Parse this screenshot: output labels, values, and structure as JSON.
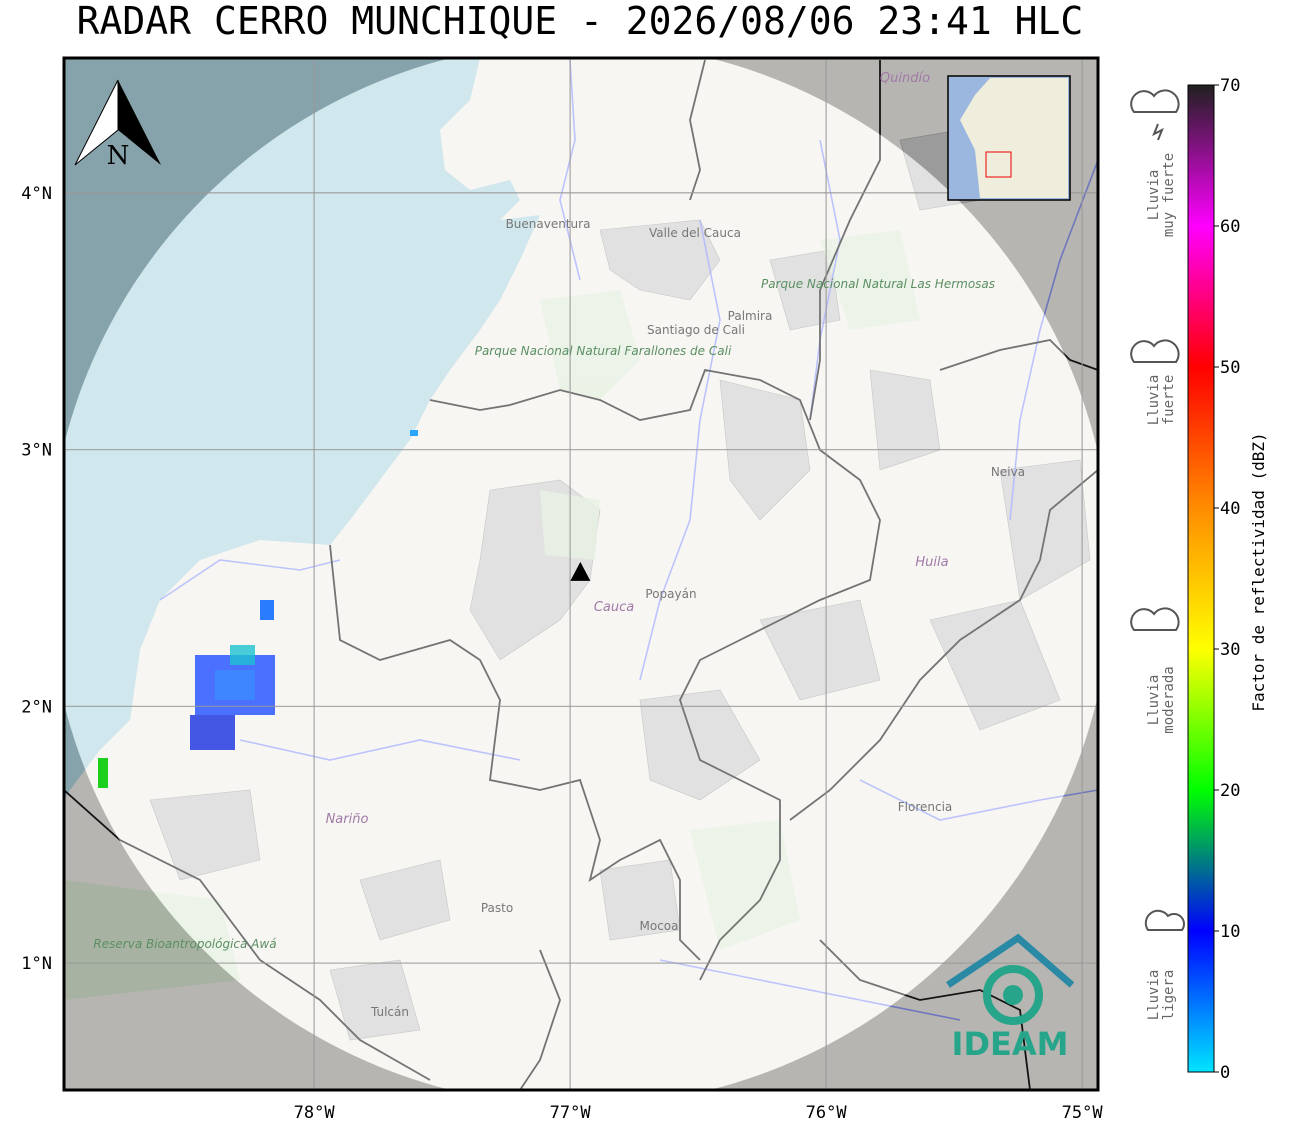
{
  "title": "RADAR CERRO MUNCHIQUE - 2026/08/06 23:41 HLC",
  "map": {
    "lon_range": [
      -78.977,
      -74.938
    ],
    "lat_range": [
      0.506,
      4.525
    ],
    "lon_ticks": [
      {
        "value": -78,
        "label": "78°W"
      },
      {
        "value": -77,
        "label": "77°W"
      },
      {
        "value": -76,
        "label": "76°W"
      },
      {
        "value": -75,
        "label": "75°W"
      }
    ],
    "lat_ticks": [
      {
        "value": 1,
        "label": "1°N"
      },
      {
        "value": 2,
        "label": "2°N"
      },
      {
        "value": 3,
        "label": "3°N"
      },
      {
        "value": 4,
        "label": "4°N"
      }
    ],
    "radar_site": {
      "lon": -76.96,
      "lat": 2.52
    },
    "north_label": "N",
    "places": [
      "Buenaventura",
      "Valle del Cauca",
      "Palmira",
      "Santiago de Cali",
      "Parque Nacional Natural Farallones de Cali",
      "Parque Nacional Natural Las Hermosas",
      "Neiva",
      "Huila",
      "Cauca",
      "Popayán",
      "Nariño",
      "Pasto",
      "Mocoa",
      "Florencia",
      "Tulcán",
      "Reserva Bioantropológica Awá",
      "Quindío"
    ],
    "logo": "IDEAM"
  },
  "colorbar": {
    "label": "Factor de reflectividad (dBZ)",
    "range": [
      0,
      70
    ],
    "ticks": [
      0,
      10,
      20,
      30,
      40,
      50,
      60,
      70
    ],
    "colors": [
      "#00e5ff",
      "#0000ff",
      "#00ff00",
      "#ffff00",
      "#ff8c00",
      "#ff0000",
      "#ff00ff",
      "#202020"
    ]
  },
  "rain_legend": [
    {
      "lines": [
        "Lluvia",
        "ligera"
      ]
    },
    {
      "lines": [
        "Lluvia",
        "moderada"
      ]
    },
    {
      "lines": [
        "Lluvia",
        "fuerte"
      ]
    },
    {
      "lines": [
        "Lluvia",
        "muy fuerte"
      ]
    }
  ]
}
